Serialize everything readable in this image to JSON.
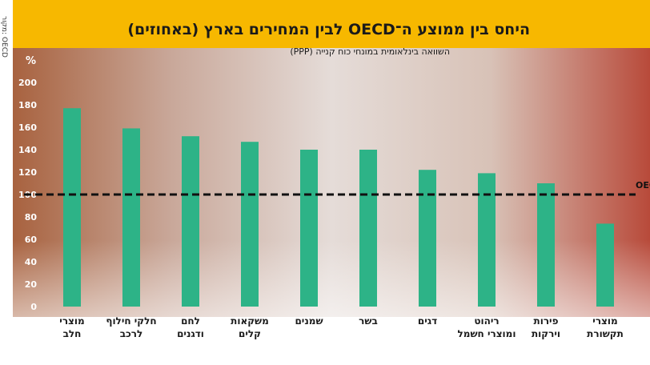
{
  "source": "מקור: OECD",
  "chart_data": {
    "type": "bar",
    "title": "היחס בין ממוצע ה־OECD לבין המחירים בארץ (באחוזים)",
    "subtitle": "השוואה בינלאומית במונחי כוח קנייה (PPP)",
    "ylabel": "%",
    "ylim": [
      0,
      200
    ],
    "yticks": [
      0,
      20,
      40,
      60,
      80,
      100,
      120,
      140,
      160,
      180,
      200
    ],
    "categories": [
      [
        "מוצרי",
        "חלב"
      ],
      [
        "חלקי חילוף",
        "לרכב"
      ],
      [
        "לחם",
        "ודגנים"
      ],
      [
        "משקאות",
        "קלים"
      ],
      [
        "שמנים"
      ],
      [
        "בשר"
      ],
      [
        "דגים"
      ],
      [
        "ריהוט",
        "ומוצרי חשמל"
      ],
      [
        "פירות",
        "וירקות"
      ],
      [
        "מוצרי",
        "תקשורת"
      ]
    ],
    "values": [
      177,
      159,
      152,
      147,
      140,
      140,
      122,
      119,
      110,
      74
    ],
    "reference_line": {
      "value": 100,
      "label": "ממוצע ה־OECD"
    },
    "bar_color": "#2db387",
    "banner_color": "#f7b800",
    "grid": false
  }
}
